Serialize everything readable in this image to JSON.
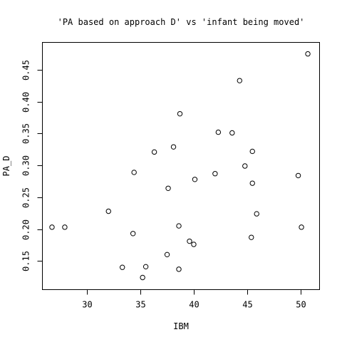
{
  "chart_data": {
    "type": "scatter",
    "title": "'PA based on approach D' vs 'infant being moved'",
    "xlabel": "IBM",
    "ylabel": "PA_D",
    "xlim": [
      25.8,
      51.8
    ],
    "ylim": [
      0.105,
      0.493
    ],
    "xticks": [
      30,
      35,
      40,
      45,
      50
    ],
    "yticks": [
      0.15,
      0.2,
      0.25,
      0.3,
      0.35,
      0.4,
      0.45
    ],
    "ytick_labels": [
      "0.15",
      "0.20",
      "0.25",
      "0.30",
      "0.35",
      "0.40",
      "0.45"
    ],
    "grid": false,
    "marker": "open-circle",
    "points": [
      {
        "x": 26.7,
        "y": 0.203
      },
      {
        "x": 27.9,
        "y": 0.203
      },
      {
        "x": 32.0,
        "y": 0.228
      },
      {
        "x": 33.3,
        "y": 0.14
      },
      {
        "x": 34.3,
        "y": 0.193
      },
      {
        "x": 34.4,
        "y": 0.289
      },
      {
        "x": 35.2,
        "y": 0.124
      },
      {
        "x": 35.5,
        "y": 0.141
      },
      {
        "x": 36.3,
        "y": 0.321
      },
      {
        "x": 37.5,
        "y": 0.16
      },
      {
        "x": 37.6,
        "y": 0.264
      },
      {
        "x": 38.1,
        "y": 0.329
      },
      {
        "x": 38.6,
        "y": 0.137
      },
      {
        "x": 38.6,
        "y": 0.205
      },
      {
        "x": 38.7,
        "y": 0.381
      },
      {
        "x": 39.6,
        "y": 0.181
      },
      {
        "x": 40.0,
        "y": 0.176
      },
      {
        "x": 40.1,
        "y": 0.278
      },
      {
        "x": 42.0,
        "y": 0.287
      },
      {
        "x": 42.3,
        "y": 0.352
      },
      {
        "x": 43.6,
        "y": 0.351
      },
      {
        "x": 44.3,
        "y": 0.433
      },
      {
        "x": 44.8,
        "y": 0.299
      },
      {
        "x": 45.4,
        "y": 0.187
      },
      {
        "x": 45.5,
        "y": 0.322
      },
      {
        "x": 45.5,
        "y": 0.272
      },
      {
        "x": 45.9,
        "y": 0.224
      },
      {
        "x": 49.8,
        "y": 0.284
      },
      {
        "x": 50.1,
        "y": 0.203
      },
      {
        "x": 50.7,
        "y": 0.475
      }
    ]
  }
}
